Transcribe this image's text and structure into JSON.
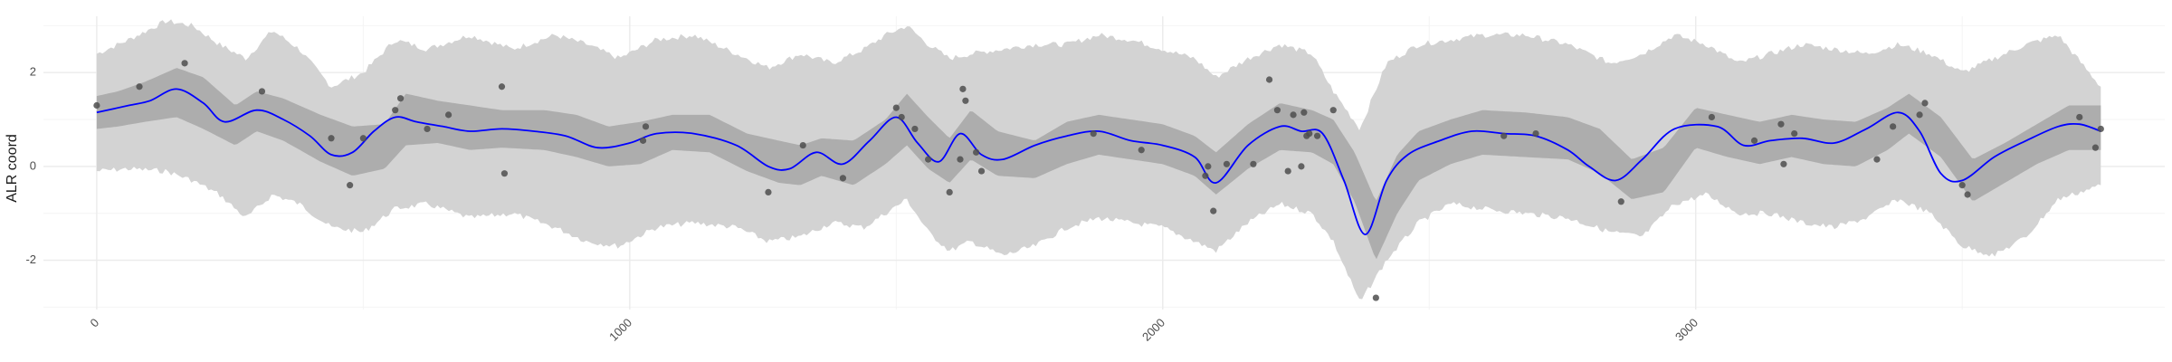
{
  "chart_data": {
    "type": "line",
    "title": "",
    "xlabel": "",
    "ylabel": "ALR coord",
    "xlim": [
      -100,
      3880
    ],
    "ylim": [
      -3.05,
      3.2
    ],
    "x_ticks": [
      0,
      1000,
      2000,
      3000
    ],
    "y_ticks": [
      -2,
      0,
      2
    ],
    "x_tick_labels": [
      "0",
      "1000",
      "2000",
      "3000"
    ],
    "y_tick_labels": [
      "-2",
      "0",
      "2"
    ],
    "grid": true,
    "colors": {
      "outer_band": "#d3d3d3",
      "inner_band": "#adadad",
      "mean_line": "#0000ff",
      "points": "#4d4d4d",
      "grid_major": "#ebebeb",
      "grid_minor": "#f4f4f4"
    },
    "series": [
      {
        "type": "line",
        "x": [
          0,
          60,
          100,
          150,
          200,
          240,
          300,
          350,
          400,
          440,
          480,
          520,
          560,
          600,
          650,
          700,
          760,
          820,
          880,
          940,
          1000,
          1050,
          1120,
          1200,
          1260,
          1300,
          1350,
          1400,
          1450,
          1500,
          1540,
          1580,
          1620,
          1660,
          1700,
          1760,
          1820,
          1880,
          1940,
          2000,
          2060,
          2100,
          2160,
          2220,
          2260,
          2300,
          2340,
          2380,
          2420,
          2460,
          2520,
          2580,
          2640,
          2700,
          2760,
          2800,
          2850,
          2900,
          2960,
          3040,
          3090,
          3140,
          3200,
          3260,
          3320,
          3380,
          3420,
          3460,
          3500,
          3560,
          3620,
          3680,
          3720,
          3760
        ],
        "values": [
          1.15,
          1.3,
          1.4,
          1.65,
          1.35,
          0.95,
          1.2,
          1.0,
          0.65,
          0.25,
          0.3,
          0.75,
          1.05,
          0.95,
          0.85,
          0.75,
          0.8,
          0.75,
          0.65,
          0.4,
          0.5,
          0.7,
          0.7,
          0.45,
          0.0,
          -0.05,
          0.3,
          0.05,
          0.55,
          1.05,
          0.5,
          0.1,
          0.7,
          0.25,
          0.15,
          0.45,
          0.65,
          0.75,
          0.55,
          0.45,
          0.2,
          -0.35,
          0.45,
          0.85,
          0.75,
          0.7,
          -0.3,
          -1.45,
          -0.3,
          0.25,
          0.55,
          0.75,
          0.7,
          0.65,
          0.35,
          0.0,
          -0.3,
          0.15,
          0.8,
          0.85,
          0.45,
          0.55,
          0.6,
          0.5,
          0.8,
          1.15,
          0.75,
          -0.15,
          -0.3,
          0.2,
          0.55,
          0.85,
          0.9,
          0.75
        ]
      },
      {
        "type": "ribbon",
        "x": [
          0,
          40,
          90,
          150,
          200,
          260,
          300,
          350,
          420,
          480,
          540,
          580,
          640,
          700,
          760,
          840,
          900,
          960,
          1020,
          1080,
          1150,
          1220,
          1280,
          1320,
          1360,
          1420,
          1480,
          1520,
          1560,
          1600,
          1640,
          1690,
          1760,
          1820,
          1880,
          1940,
          2000,
          2060,
          2100,
          2160,
          2220,
          2280,
          2320,
          2360,
          2400,
          2440,
          2480,
          2540,
          2600,
          2680,
          2760,
          2820,
          2880,
          2940,
          3000,
          3060,
          3120,
          3180,
          3240,
          3300,
          3360,
          3400,
          3460,
          3520,
          3580,
          3640,
          3700,
          3760
        ],
        "lower": [
          0.8,
          0.85,
          0.95,
          1.05,
          0.8,
          0.45,
          0.75,
          0.55,
          0.1,
          -0.2,
          -0.05,
          0.45,
          0.5,
          0.35,
          0.4,
          0.35,
          0.2,
          0.0,
          0.05,
          0.35,
          0.3,
          -0.1,
          -0.35,
          -0.4,
          -0.2,
          -0.4,
          0.05,
          0.45,
          -0.05,
          -0.35,
          0.15,
          -0.2,
          -0.25,
          0.05,
          0.25,
          0.15,
          0.05,
          -0.2,
          -0.6,
          -0.05,
          0.35,
          0.3,
          0.05,
          -0.75,
          -2.0,
          -1.0,
          -0.3,
          0.05,
          0.25,
          0.2,
          0.15,
          -0.15,
          -0.7,
          -0.55,
          0.4,
          0.2,
          0.05,
          0.2,
          0.05,
          0.0,
          0.35,
          0.7,
          0.2,
          -0.75,
          -0.35,
          0.05,
          0.35,
          0.35
        ],
        "upper": [
          1.5,
          1.6,
          1.8,
          2.1,
          1.9,
          1.3,
          1.6,
          1.45,
          1.1,
          0.85,
          0.9,
          1.55,
          1.4,
          1.3,
          1.2,
          1.2,
          1.1,
          0.85,
          0.95,
          1.1,
          1.1,
          0.7,
          0.55,
          0.45,
          0.6,
          0.55,
          1.0,
          1.55,
          1.05,
          0.6,
          1.2,
          0.75,
          0.55,
          0.95,
          1.1,
          1.0,
          0.9,
          0.65,
          0.3,
          0.9,
          1.35,
          1.2,
          1.0,
          0.3,
          -0.75,
          0.25,
          0.75,
          1.0,
          1.2,
          1.15,
          1.05,
          0.8,
          0.15,
          0.4,
          1.25,
          1.1,
          0.95,
          1.1,
          1.0,
          0.95,
          1.25,
          1.55,
          1.05,
          0.15,
          0.5,
          0.9,
          1.3,
          1.3
        ]
      },
      {
        "type": "ribbon",
        "x": [
          0,
          60,
          130,
          180,
          230,
          280,
          330,
          380,
          440,
          500,
          560,
          620,
          700,
          780,
          860,
          920,
          980,
          1050,
          1120,
          1200,
          1260,
          1320,
          1380,
          1440,
          1480,
          1520,
          1560,
          1600,
          1640,
          1700,
          1760,
          1820,
          1880,
          1940,
          2000,
          2060,
          2100,
          2160,
          2220,
          2280,
          2320,
          2370,
          2420,
          2480,
          2540,
          2600,
          2680,
          2760,
          2840,
          2900,
          2960,
          3020,
          3080,
          3140,
          3200,
          3260,
          3320,
          3380,
          3440,
          3500,
          3560,
          3620,
          3680,
          3760
        ],
        "lower": [
          -0.1,
          -0.05,
          -0.1,
          -0.3,
          -0.6,
          -1.1,
          -0.6,
          -0.8,
          -1.3,
          -1.4,
          -0.9,
          -0.8,
          -1.1,
          -1.0,
          -1.3,
          -1.6,
          -1.7,
          -1.3,
          -1.2,
          -1.3,
          -1.6,
          -1.5,
          -1.2,
          -1.3,
          -1.0,
          -0.7,
          -1.4,
          -1.8,
          -1.6,
          -1.9,
          -1.7,
          -1.3,
          -1.1,
          -1.2,
          -1.3,
          -1.6,
          -1.8,
          -1.2,
          -0.8,
          -1.0,
          -1.6,
          -2.9,
          -2.0,
          -1.2,
          -0.8,
          -0.9,
          -1.0,
          -1.1,
          -1.4,
          -1.5,
          -0.8,
          -0.6,
          -1.0,
          -1.0,
          -1.2,
          -1.3,
          -1.1,
          -0.7,
          -1.0,
          -1.7,
          -1.9,
          -1.5,
          -0.7,
          -0.4
        ],
        "upper": [
          2.4,
          2.7,
          3.1,
          3.0,
          2.6,
          2.3,
          2.9,
          2.5,
          1.7,
          2.0,
          2.7,
          2.5,
          2.8,
          2.5,
          2.8,
          2.6,
          2.3,
          2.7,
          2.8,
          2.4,
          2.1,
          2.4,
          2.2,
          2.5,
          2.8,
          3.0,
          2.6,
          2.3,
          2.4,
          2.5,
          2.6,
          2.6,
          2.8,
          2.7,
          2.5,
          2.3,
          1.9,
          2.3,
          2.6,
          2.4,
          1.6,
          0.8,
          2.2,
          2.6,
          2.7,
          2.8,
          2.8,
          2.6,
          2.2,
          2.4,
          2.8,
          2.6,
          2.2,
          2.4,
          2.6,
          2.5,
          2.4,
          2.6,
          2.4,
          2.0,
          2.3,
          2.6,
          2.8,
          1.7
        ]
      },
      {
        "type": "scatter",
        "x": [
          0,
          80,
          165,
          310,
          440,
          475,
          500,
          560,
          570,
          620,
          660,
          760,
          765,
          1025,
          1030,
          1260,
          1325,
          1400,
          1500,
          1510,
          1535,
          1560,
          1600,
          1620,
          1625,
          1630,
          1650,
          1660,
          1870,
          1960,
          2080,
          2085,
          2095,
          2120,
          2170,
          2200,
          2215,
          2235,
          2245,
          2260,
          2265,
          2270,
          2275,
          2290,
          2320,
          2400,
          2640,
          2700,
          2860,
          3030,
          3110,
          3160,
          3165,
          3185,
          3340,
          3370,
          3420,
          3430,
          3500,
          3510,
          3720,
          3750,
          3760
        ],
        "y": [
          1.3,
          1.7,
          2.2,
          1.6,
          0.6,
          -0.4,
          0.6,
          1.2,
          1.45,
          0.8,
          1.1,
          1.7,
          -0.15,
          0.55,
          0.85,
          -0.55,
          0.45,
          -0.25,
          1.25,
          1.05,
          0.8,
          0.15,
          -0.55,
          0.15,
          1.65,
          1.4,
          0.3,
          -0.1,
          0.7,
          0.35,
          -0.2,
          0.0,
          -0.95,
          0.05,
          0.05,
          1.85,
          1.2,
          -0.1,
          1.1,
          0.0,
          1.15,
          0.65,
          0.7,
          0.65,
          1.2,
          -2.8,
          0.65,
          0.7,
          -0.75,
          1.05,
          0.55,
          0.9,
          0.05,
          0.7,
          0.15,
          0.85,
          1.1,
          1.35,
          -0.4,
          -0.6,
          1.05,
          0.4,
          0.8
        ]
      }
    ]
  }
}
